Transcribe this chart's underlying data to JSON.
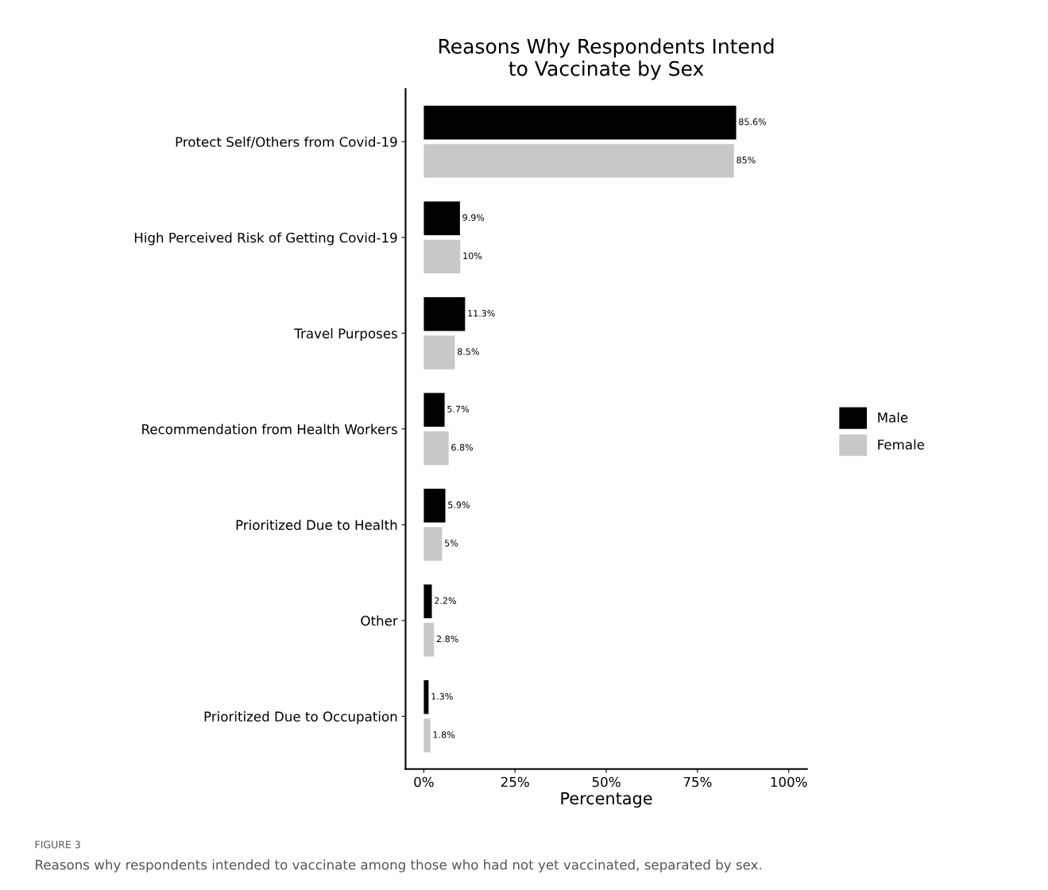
{
  "chart_data": {
    "type": "bar",
    "orientation": "horizontal",
    "title": "Reasons Why Respondents Intend\nto Vaccinate by Sex",
    "xlabel": "Percentage",
    "categories": [
      "Protect Self/Others from Covid-19",
      "High Perceived Risk of Getting Covid-19",
      "Travel Purposes",
      "Recommendation from Health Workers",
      "Prioritized Due to Health",
      "Other",
      "Prioritized Due to Occupation"
    ],
    "series": [
      {
        "name": "Male",
        "color": "#000000",
        "values": [
          85.6,
          9.9,
          11.3,
          5.7,
          5.9,
          2.2,
          1.3
        ],
        "value_labels": [
          "85.6%",
          "9.9%",
          "11.3%",
          "5.7%",
          "5.9%",
          "2.2%",
          "1.3%"
        ]
      },
      {
        "name": "Female",
        "color": "#c8c8c8",
        "values": [
          85,
          10,
          8.5,
          6.8,
          5,
          2.8,
          1.8
        ],
        "value_labels": [
          "85%",
          "10%",
          "8.5%",
          "6.8%",
          "5%",
          "2.8%",
          "1.8%"
        ]
      }
    ],
    "xlim": [
      -5,
      105
    ],
    "xticks": [
      {
        "value": 0,
        "label": "0%"
      },
      {
        "value": 25,
        "label": "25%"
      },
      {
        "value": 50,
        "label": "50%"
      },
      {
        "value": 75,
        "label": "75%"
      },
      {
        "value": 100,
        "label": "100%"
      }
    ],
    "grid": false,
    "legend": "right",
    "annotations": [
      "FIGURE 3",
      "Reasons why respondents intended to vaccinate among those who had not yet vaccinated, separated by sex."
    ]
  }
}
